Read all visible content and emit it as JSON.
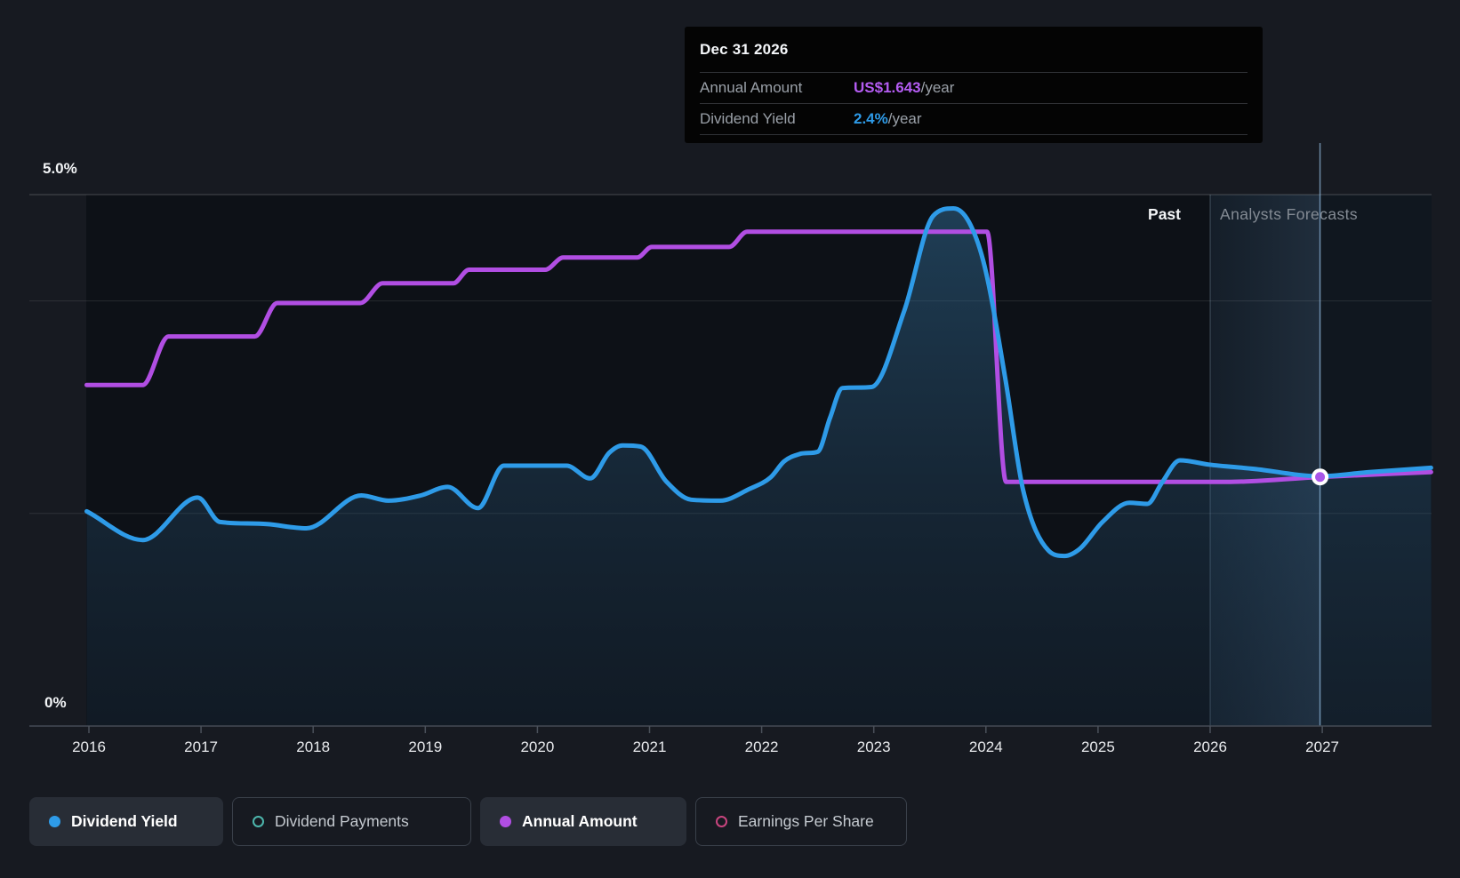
{
  "tooltip": {
    "date": "Dec 31 2026",
    "rows": [
      {
        "label": "Annual Amount",
        "value": "US$1.643",
        "suffix": "/year",
        "value_color": "#b45cf2"
      },
      {
        "label": "Dividend Yield",
        "value": "2.4%",
        "suffix": "/year",
        "value_color": "#2e9be8"
      }
    ]
  },
  "annotations": {
    "past_label": "Past",
    "forecast_label": "Analysts Forecasts"
  },
  "y_axis": {
    "top_label": "5.0%",
    "bottom_label": "0%"
  },
  "x_axis": {
    "years": [
      "2016",
      "2017",
      "2018",
      "2019",
      "2020",
      "2021",
      "2022",
      "2023",
      "2024",
      "2025",
      "2026",
      "2027"
    ]
  },
  "legend": [
    {
      "label": "Dividend Yield",
      "color": "#2e9be8",
      "style": "filled",
      "active": true
    },
    {
      "label": "Dividend Payments",
      "color": "#4db6ac",
      "style": "hollow",
      "active": false
    },
    {
      "label": "Annual Amount",
      "color": "#b14ee3",
      "style": "filled",
      "active": true
    },
    {
      "label": "Earnings Per Share",
      "color": "#c9457f",
      "style": "hollow",
      "active": false
    }
  ],
  "colors": {
    "background": "#171a21",
    "plot_panel": "#0d1117",
    "dividend_yield_line": "#2e9be8",
    "annual_amount_line": "#b14ee3",
    "gridline": "#ffffff",
    "crosshair": "#9ac4eb",
    "marker_fill": "#a855e8",
    "marker_ring": "#ffffff"
  },
  "chart_data": {
    "type": "line",
    "title": "Dividend yield and payments history with analyst forecasts",
    "x_ticks": [
      2016,
      2017,
      2018,
      2019,
      2020,
      2021,
      2022,
      2023,
      2024,
      2025,
      2026,
      2027
    ],
    "x_range": [
      2015.98,
      2027.97
    ],
    "y_left": {
      "unit": "%",
      "min": 0,
      "max": 5.0,
      "gridlines_pct": [
        5.0,
        4.0,
        2.0
      ]
    },
    "forecast_start_year": 2026.0,
    "hover_year": 2026.98,
    "legend_position": "bottom",
    "series": [
      {
        "name": "Dividend Yield",
        "unit": "%",
        "axis": "pct",
        "points": [
          [
            2015.98,
            2.02
          ],
          [
            2016.48,
            1.75
          ],
          [
            2016.97,
            2.15
          ],
          [
            2017.17,
            1.92
          ],
          [
            2017.59,
            1.9
          ],
          [
            2017.94,
            1.86
          ],
          [
            2018.43,
            2.17
          ],
          [
            2018.67,
            2.12
          ],
          [
            2018.96,
            2.17
          ],
          [
            2019.2,
            2.25
          ],
          [
            2019.47,
            2.05
          ],
          [
            2019.7,
            2.45
          ],
          [
            2020.26,
            2.45
          ],
          [
            2020.47,
            2.33
          ],
          [
            2020.64,
            2.57
          ],
          [
            2020.76,
            2.64
          ],
          [
            2020.92,
            2.63
          ],
          [
            2021.15,
            2.3
          ],
          [
            2021.37,
            2.13
          ],
          [
            2021.63,
            2.12
          ],
          [
            2021.89,
            2.23
          ],
          [
            2022.08,
            2.34
          ],
          [
            2022.2,
            2.49
          ],
          [
            2022.34,
            2.56
          ],
          [
            2022.5,
            2.58
          ],
          [
            2022.61,
            2.9
          ],
          [
            2022.72,
            3.18
          ],
          [
            2022.98,
            3.19
          ],
          [
            2023.27,
            3.9
          ],
          [
            2023.53,
            4.8
          ],
          [
            2023.71,
            4.87
          ],
          [
            2023.85,
            4.74
          ],
          [
            2023.99,
            4.32
          ],
          [
            2024.17,
            3.29
          ],
          [
            2024.33,
            2.23
          ],
          [
            2024.56,
            1.65
          ],
          [
            2024.7,
            1.6
          ],
          [
            2024.84,
            1.67
          ],
          [
            2025.04,
            1.92
          ],
          [
            2025.28,
            2.1
          ],
          [
            2025.44,
            2.09
          ],
          [
            2025.57,
            2.29
          ],
          [
            2025.73,
            2.5
          ],
          [
            2025.99,
            2.46
          ],
          [
            2026.39,
            2.42
          ],
          [
            2026.98,
            2.35
          ],
          [
            2027.42,
            2.39
          ],
          [
            2027.97,
            2.43
          ]
        ]
      },
      {
        "name": "Annual Amount",
        "unit": "US$/year",
        "axis": "usd",
        "points": [
          [
            2015.98,
            2.25
          ],
          [
            2016.48,
            2.25
          ],
          [
            2016.71,
            2.57
          ],
          [
            2017.48,
            2.57
          ],
          [
            2017.68,
            2.79
          ],
          [
            2018.42,
            2.79
          ],
          [
            2018.62,
            2.92
          ],
          [
            2019.25,
            2.92
          ],
          [
            2019.39,
            3.01
          ],
          [
            2020.07,
            3.01
          ],
          [
            2020.23,
            3.09
          ],
          [
            2020.89,
            3.09
          ],
          [
            2021.02,
            3.16
          ],
          [
            2021.71,
            3.16
          ],
          [
            2021.87,
            3.26
          ],
          [
            2023.95,
            3.26
          ],
          [
            2024.01,
            3.26
          ],
          [
            2024.18,
            1.61
          ],
          [
            2024.3,
            1.61
          ],
          [
            2026.15,
            1.61
          ],
          [
            2026.98,
            1.643
          ],
          [
            2027.97,
            1.675
          ]
        ]
      }
    ],
    "marker": {
      "series": "Annual Amount",
      "year": 2026.98,
      "value": 1.643,
      "display": "US$1.643/year"
    },
    "hover_readout": {
      "dividend_yield_pct": 2.4,
      "annual_amount_usd": 1.643
    }
  }
}
